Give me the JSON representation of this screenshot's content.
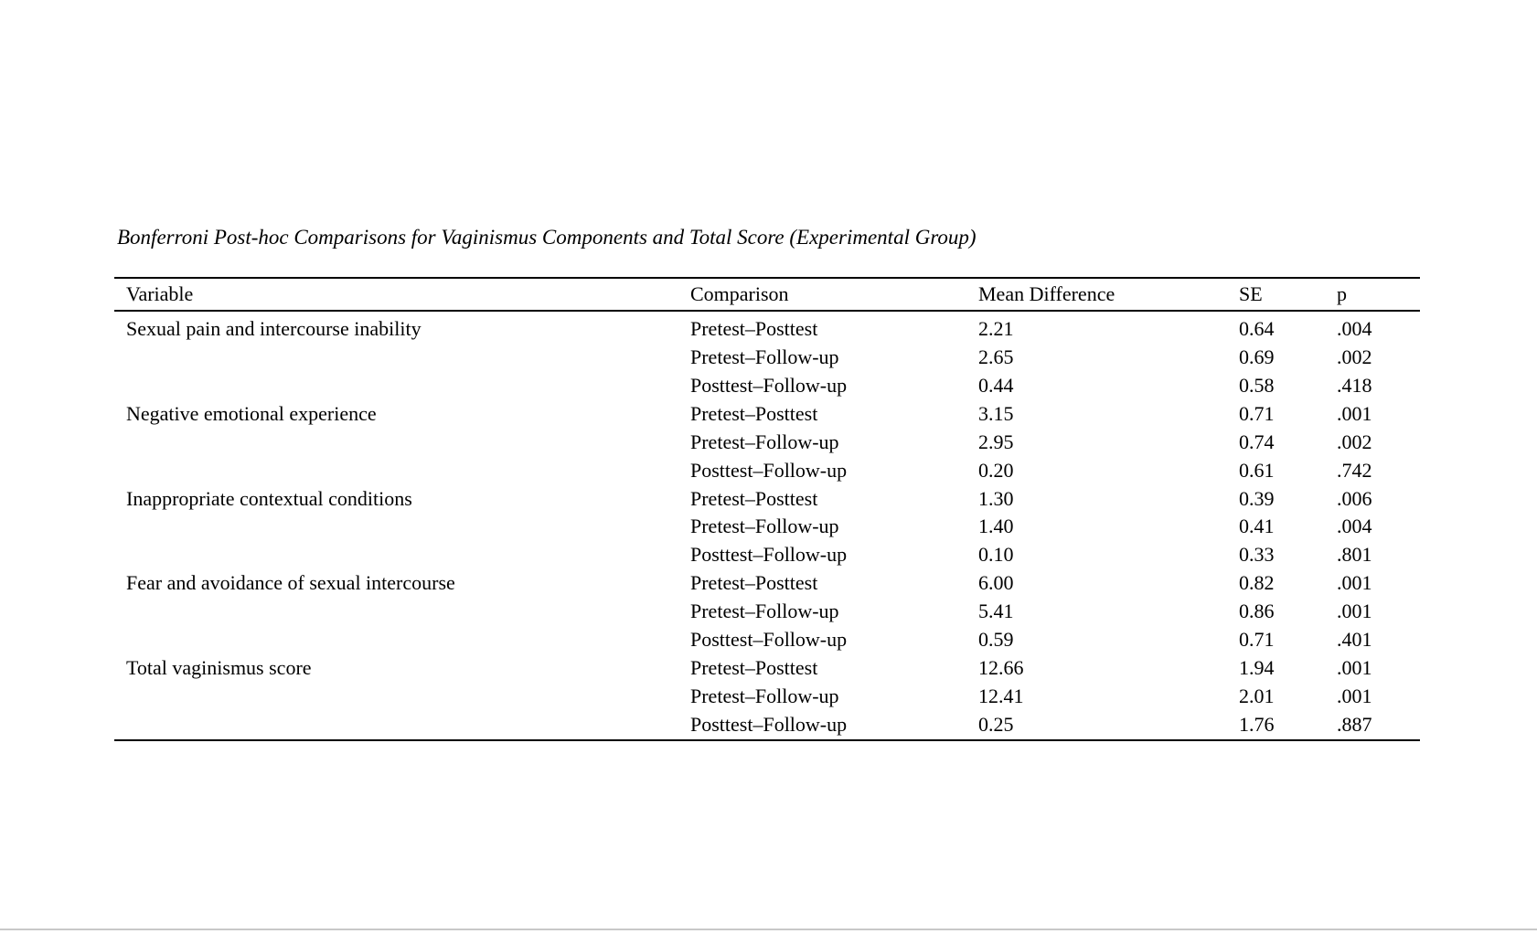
{
  "page": {
    "title": "Bonferroni Post-hoc Comparisons for Vaginismus Components and Total Score (Experimental Group)"
  },
  "colors": {
    "page_background": "#ffffff",
    "text": "#000000",
    "table_rules": "#000000",
    "page_edge_line": "#c8c8c8"
  },
  "table": {
    "columns": {
      "variable": "Variable",
      "comparison": "Comparison",
      "mean_difference": "Mean Difference",
      "se": "SE",
      "p": "p"
    },
    "rows": [
      {
        "variable": "Sexual pain and intercourse inability",
        "comparison": "Pretest–Posttest",
        "mean_difference": "2.21",
        "se": "0.64",
        "p": ".004"
      },
      {
        "variable": "",
        "comparison": "Pretest–Follow-up",
        "mean_difference": "2.65",
        "se": "0.69",
        "p": ".002"
      },
      {
        "variable": "",
        "comparison": "Posttest–Follow-up",
        "mean_difference": "0.44",
        "se": "0.58",
        "p": ".418"
      },
      {
        "variable": "Negative emotional experience",
        "comparison": "Pretest–Posttest",
        "mean_difference": "3.15",
        "se": "0.71",
        "p": ".001"
      },
      {
        "variable": "",
        "comparison": "Pretest–Follow-up",
        "mean_difference": "2.95",
        "se": "0.74",
        "p": ".002"
      },
      {
        "variable": "",
        "comparison": "Posttest–Follow-up",
        "mean_difference": "0.20",
        "se": "0.61",
        "p": ".742"
      },
      {
        "variable": "Inappropriate contextual conditions",
        "comparison": "Pretest–Posttest",
        "mean_difference": "1.30",
        "se": "0.39",
        "p": ".006"
      },
      {
        "variable": "",
        "comparison": "Pretest–Follow-up",
        "mean_difference": "1.40",
        "se": "0.41",
        "p": ".004"
      },
      {
        "variable": "",
        "comparison": "Posttest–Follow-up",
        "mean_difference": "0.10",
        "se": "0.33",
        "p": ".801"
      },
      {
        "variable": "Fear and avoidance of sexual intercourse",
        "comparison": "Pretest–Posttest",
        "mean_difference": "6.00",
        "se": "0.82",
        "p": ".001"
      },
      {
        "variable": "",
        "comparison": "Pretest–Follow-up",
        "mean_difference": "5.41",
        "se": "0.86",
        "p": ".001"
      },
      {
        "variable": "",
        "comparison": "Posttest–Follow-up",
        "mean_difference": "0.59",
        "se": "0.71",
        "p": ".401"
      },
      {
        "variable": "Total vaginismus score",
        "comparison": "Pretest–Posttest",
        "mean_difference": "12.66",
        "se": "1.94",
        "p": ".001"
      },
      {
        "variable": "",
        "comparison": "Pretest–Follow-up",
        "mean_difference": "12.41",
        "se": "2.01",
        "p": ".001"
      },
      {
        "variable": "",
        "comparison": "Posttest–Follow-up",
        "mean_difference": "0.25",
        "se": "1.76",
        "p": ".887"
      }
    ]
  }
}
